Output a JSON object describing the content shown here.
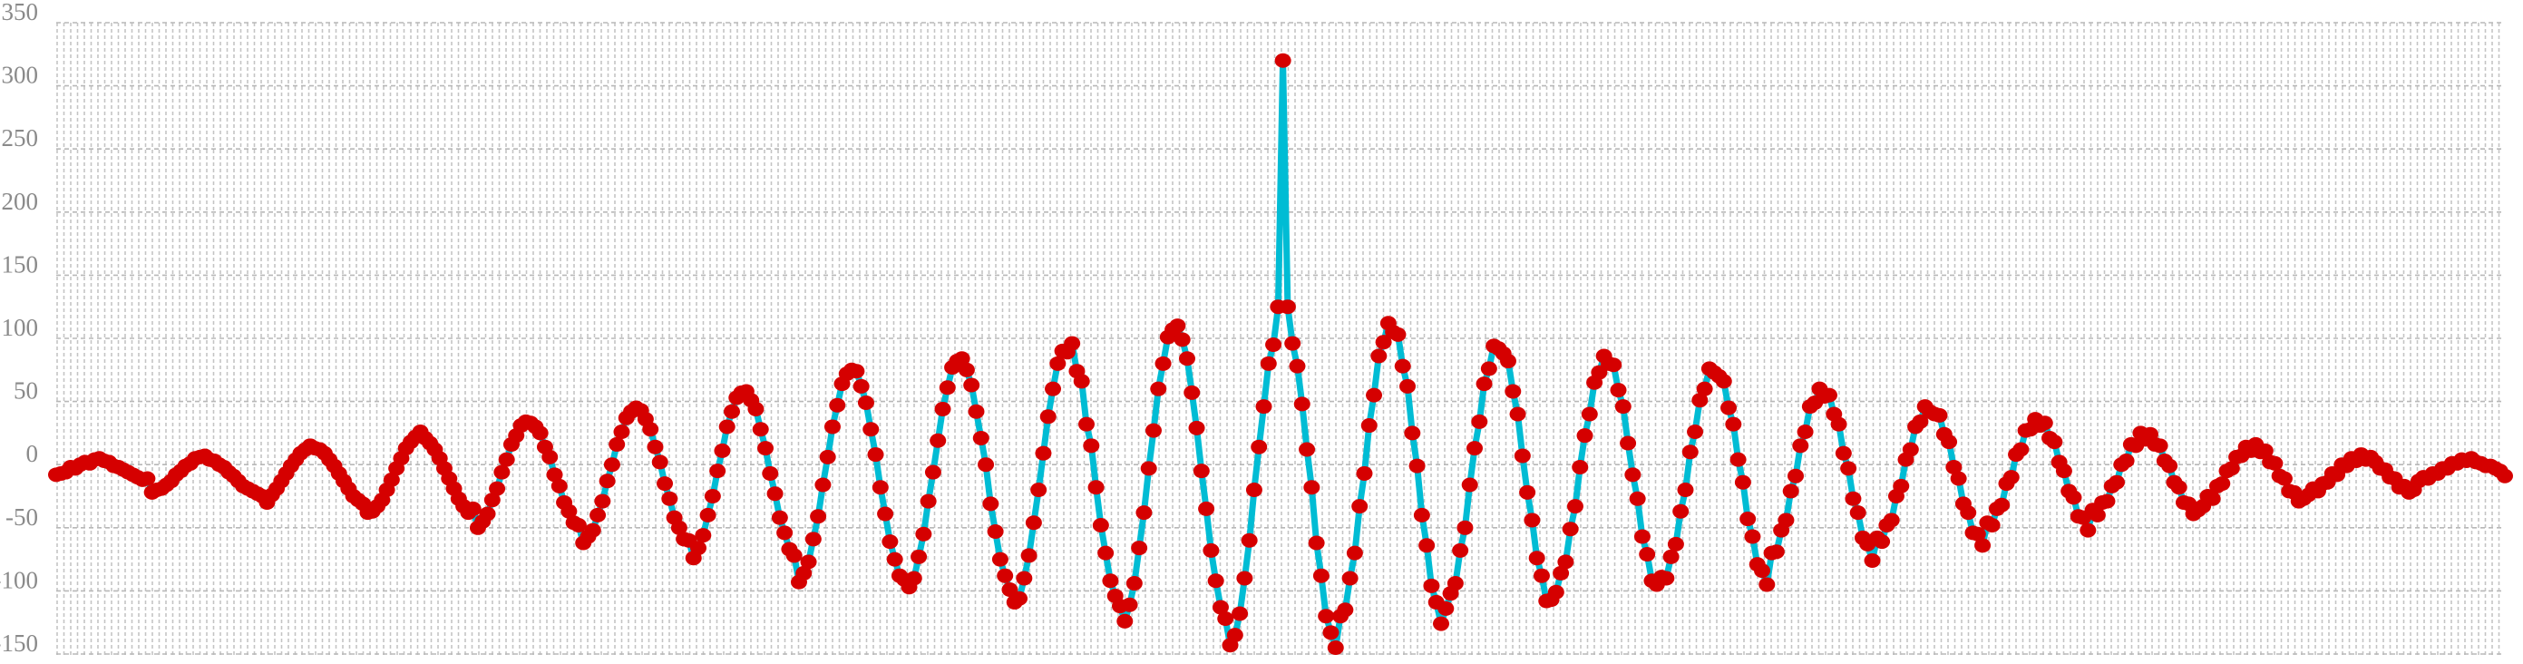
{
  "chart_data": {
    "type": "line",
    "title": "",
    "xlabel": "",
    "ylabel": "",
    "ylim": [
      -150,
      350
    ],
    "yticks": [
      "350",
      "300",
      "250",
      "200",
      "150",
      "100",
      "50",
      "0",
      "-50",
      "-100",
      "-150"
    ],
    "grid": true,
    "legend": "none",
    "colors": {
      "line": "#00BCD4",
      "marker": "#D50000",
      "grid": "#b8b8b8",
      "tick_text": "#8a8a8a"
    },
    "series": [
      {
        "values": [
          -8,
          -7,
          -6,
          -2,
          -3,
          0,
          2,
          1,
          4,
          5,
          3,
          2,
          -1,
          -2,
          -4,
          -6,
          -8,
          -10,
          -12,
          -11,
          -22,
          -20,
          -19,
          -16,
          -13,
          -8,
          -5,
          -1,
          1,
          5,
          6,
          7,
          4,
          3,
          0,
          -2,
          -6,
          -9,
          -13,
          -17,
          -19,
          -21,
          -23,
          -25,
          -30,
          -24,
          -19,
          -13,
          -7,
          -1,
          4,
          9,
          12,
          15,
          13,
          12,
          9,
          4,
          -1,
          -7,
          -13,
          -19,
          -25,
          -28,
          -31,
          -38,
          -37,
          -33,
          -28,
          -20,
          -12,
          -3,
          5,
          13,
          18,
          22,
          26,
          21,
          17,
          12,
          5,
          -3,
          -11,
          -19,
          -27,
          -33,
          -38,
          -35,
          -50,
          -45,
          -39,
          -28,
          -19,
          -6,
          4,
          16,
          23,
          31,
          34,
          33,
          30,
          25,
          14,
          6,
          -8,
          -17,
          -30,
          -37,
          -46,
          -48,
          -62,
          -57,
          -52,
          -40,
          -29,
          -13,
          0,
          16,
          26,
          37,
          42,
          45,
          43,
          36,
          28,
          14,
          2,
          -15,
          -27,
          -42,
          -50,
          -59,
          -60,
          -74,
          -66,
          -56,
          -40,
          -25,
          -5,
          11,
          30,
          42,
          53,
          57,
          58,
          51,
          44,
          28,
          13,
          -7,
          -23,
          -42,
          -54,
          -67,
          -72,
          -93,
          -86,
          -77,
          -59,
          -41,
          -16,
          6,
          30,
          47,
          64,
          72,
          75,
          74,
          62,
          49,
          28,
          8,
          -18,
          -39,
          -61,
          -75,
          -88,
          -91,
          -97,
          -90,
          -73,
          -55,
          -29,
          -6,
          19,
          44,
          61,
          77,
          82,
          84,
          75,
          63,
          42,
          21,
          0,
          -31,
          -53,
          -75,
          -88,
          -99,
          -109,
          -106,
          -90,
          -72,
          -46,
          -20,
          9,
          38,
          60,
          80,
          90,
          89,
          96,
          74,
          66,
          32,
          15,
          -18,
          -48,
          -70,
          -92,
          -104,
          -112,
          -124,
          -111,
          -94,
          -66,
          -38,
          -3,
          27,
          60,
          80,
          101,
          107,
          110,
          99,
          84,
          57,
          29,
          -5,
          -35,
          -68,
          -92,
          -113,
          -122,
          -143,
          -135,
          -118,
          -90,
          -60,
          -20,
          14,
          46,
          80,
          95,
          125,
          320,
          125,
          96,
          78,
          48,
          12,
          -18,
          -62,
          -88,
          -120,
          -133,
          -145,
          -120,
          -115,
          -90,
          -70,
          -33,
          -7,
          31,
          55,
          86,
          97,
          112,
          105,
          103,
          78,
          62,
          25,
          -1,
          -40,
          -64,
          -96,
          -109,
          -126,
          -114,
          -102,
          -94,
          -68,
          -50,
          -16,
          13,
          34,
          64,
          76,
          94,
          92,
          88,
          82,
          58,
          40,
          7,
          -22,
          -44,
          -74,
          -88,
          -108,
          -107,
          -101,
          -86,
          -77,
          -51,
          -33,
          -2,
          23,
          40,
          65,
          73,
          86,
          80,
          79,
          59,
          46,
          17,
          -8,
          -27,
          -57,
          -71,
          -92,
          -95,
          -89,
          -90,
          -73,
          -63,
          -37,
          -20,
          10,
          26,
          51,
          60,
          76,
          73,
          70,
          66,
          45,
          32,
          4,
          -14,
          -43,
          -57,
          -79,
          -84,
          -95,
          -70,
          -69,
          -52,
          -44,
          -21,
          -9,
          15,
          26,
          46,
          49,
          60,
          54,
          55,
          40,
          32,
          9,
          -3,
          -27,
          -38,
          -58,
          -63,
          -76,
          -58,
          -61,
          -48,
          -44,
          -25,
          -17,
          4,
          12,
          30,
          34,
          46,
          42,
          40,
          39,
          24,
          18,
          -2,
          -11,
          -31,
          -38,
          -54,
          -55,
          -64,
          -46,
          -48,
          -35,
          -32,
          -15,
          -10,
          8,
          12,
          27,
          28,
          36,
          31,
          33,
          21,
          18,
          2,
          -5,
          -21,
          -26,
          -41,
          -42,
          -52,
          -36,
          -40,
          -30,
          -29,
          -17,
          -14,
          0,
          3,
          16,
          15,
          25,
          20,
          24,
          16,
          15,
          3,
          -1,
          -14,
          -18,
          -30,
          -31,
          -39,
          -36,
          -33,
          -25,
          -27,
          -17,
          -15,
          -5,
          -3,
          6,
          7,
          14,
          11,
          16,
          10,
          11,
          2,
          1,
          -9,
          -11,
          -21,
          -22,
          -29,
          -27,
          -24,
          -19,
          -21,
          -15,
          -14,
          -7,
          -8,
          0,
          -1,
          5,
          3,
          8,
          4,
          6,
          2,
          -3,
          -4,
          -10,
          -11,
          -18,
          -17,
          -22,
          -20,
          -13,
          -10,
          -11,
          -7,
          -7,
          -3,
          -3,
          1,
          1,
          4,
          3,
          5,
          2,
          1,
          -1,
          -1,
          -3,
          -5,
          -9
        ]
      }
    ]
  }
}
